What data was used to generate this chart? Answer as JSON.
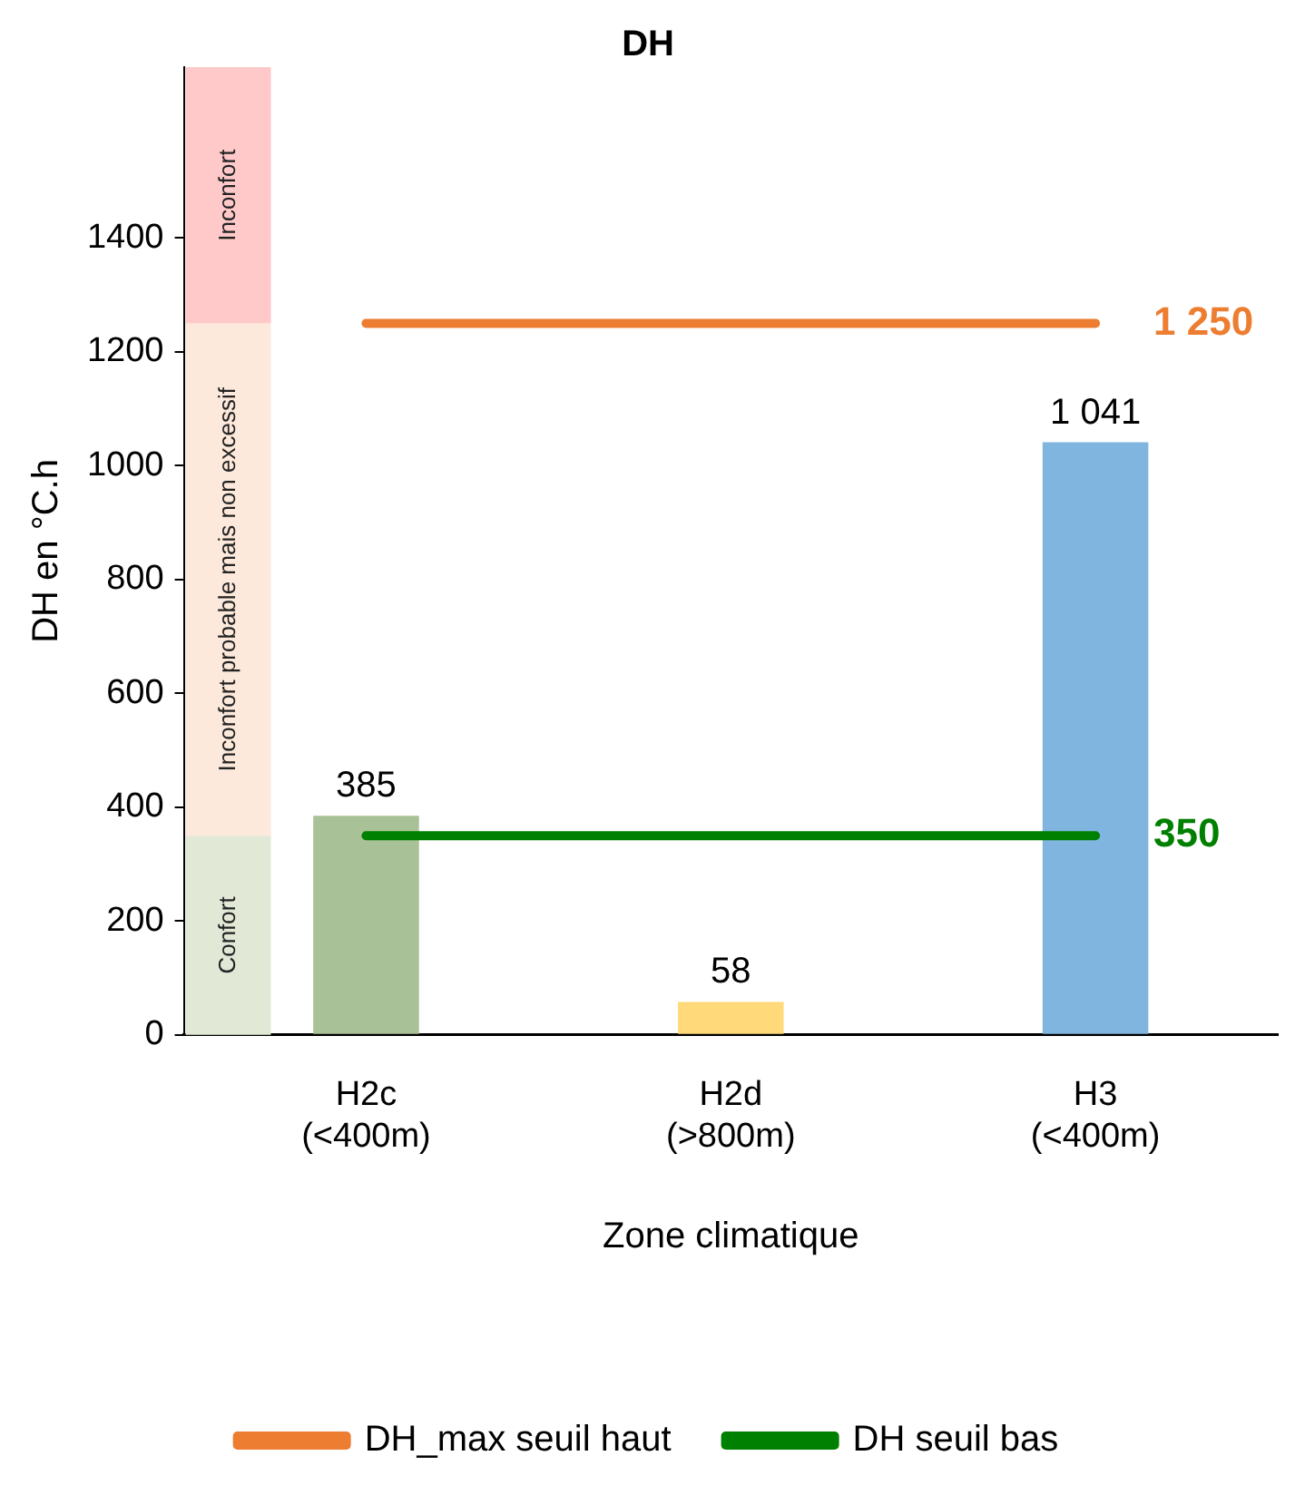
{
  "chart_data": {
    "type": "bar",
    "title": "DH",
    "xlabel": "Zone climatique",
    "ylabel": "DH en °C.h",
    "categories": [
      "H2c (<400m)",
      "H2d (>800m)",
      "H3 (<400m)"
    ],
    "series": [
      {
        "colors": [
          "#a9c196",
          "#ffd97a",
          "#7fb5de"
        ],
        "values": [
          385,
          58,
          1041
        ],
        "value_labels": [
          "385",
          "58",
          "1 041"
        ]
      },
      {
        "type": "line",
        "name": "DH_max seuil haut",
        "color": "#ed7d31",
        "values": [
          1250,
          1250,
          1250
        ],
        "value_labels": [
          null,
          null,
          "1 250"
        ]
      },
      {
        "type": "line",
        "name": "DH seuil bas",
        "color": "#008000",
        "values": [
          350,
          350,
          350
        ],
        "value_labels": [
          null,
          null,
          "350"
        ]
      }
    ],
    "bands": [
      {
        "axis": "y",
        "from": 0,
        "to": 350,
        "label": "Confort",
        "color": "#e2e8d6"
      },
      {
        "axis": "y",
        "from": 350,
        "to": 1250,
        "label": "Inconfort probable mais non excessif",
        "color": "#fde9db"
      },
      {
        "axis": "y",
        "from": 1250,
        "to": 1700,
        "label": "Inconfort",
        "color": "#ffc9c9"
      }
    ],
    "ylim": [
      0,
      1700
    ],
    "yticks": [
      0,
      200,
      400,
      600,
      800,
      1000,
      1200,
      1400
    ],
    "grid": false,
    "legend": "bottom",
    "line_style": "solid",
    "marker": "none"
  }
}
